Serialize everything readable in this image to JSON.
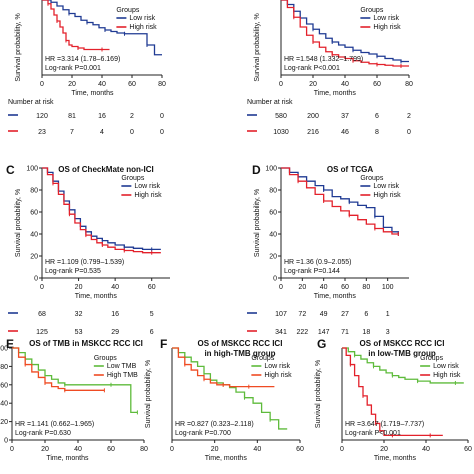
{
  "colors": {
    "blue": "#1f3a93",
    "red": "#e3212b",
    "orange": "#ef4b23",
    "green": "#5ebb3b",
    "axis": "#222222",
    "text": "#111111"
  },
  "common": {
    "x_label": "Time, months",
    "y_label": "Survival probability, %",
    "risk_title": "Number at risk",
    "legend_title": "Groups"
  },
  "chart_data": [
    {
      "id": "A",
      "type": "line",
      "letter": "",
      "title": "",
      "xlim": [
        0,
        80
      ],
      "ylim": [
        0,
        100
      ],
      "xticks": [
        0,
        20,
        40,
        60,
        80
      ],
      "yticks": [],
      "legend": [
        "Low risk",
        "High risk"
      ],
      "hr": "HR =3.314 (1.78–6.169)",
      "pval": "Log-rank P=0.001",
      "risk": [
        [
          "120",
          "81",
          "16",
          "2",
          "0"
        ],
        [
          "23",
          "7",
          "4",
          "0",
          "0"
        ]
      ],
      "series": [
        {
          "name": "Low risk",
          "color": "blue",
          "x": [
            0,
            3,
            6,
            10,
            14,
            18,
            22,
            26,
            30,
            34,
            38,
            42,
            46,
            50,
            55,
            60,
            65,
            70,
            75,
            80
          ],
          "y": [
            100,
            100,
            97,
            92,
            87,
            82,
            78,
            73,
            70,
            67,
            63,
            60,
            58,
            56,
            55,
            55,
            55,
            40,
            27,
            27
          ]
        },
        {
          "name": "High risk",
          "color": "red",
          "x": [
            0,
            2,
            4,
            6,
            8,
            10,
            12,
            14,
            16,
            18,
            20,
            24,
            28,
            35,
            40,
            45
          ],
          "y": [
            100,
            100,
            95,
            88,
            80,
            72,
            64,
            56,
            46,
            40,
            38,
            36,
            34,
            34,
            34,
            34
          ]
        }
      ]
    },
    {
      "id": "B",
      "type": "line",
      "letter": "",
      "title": "",
      "xlim": [
        0,
        80
      ],
      "ylim": [
        0,
        100
      ],
      "xticks": [
        0,
        20,
        40,
        60,
        80
      ],
      "yticks": [],
      "legend": [
        "Low risk",
        "High risk"
      ],
      "hr": "HR =1.548 (1.332–1.799)",
      "pval": "Log-rank P<0.001",
      "risk": [
        [
          "580",
          "200",
          "37",
          "6",
          "2"
        ],
        [
          "1030",
          "216",
          "46",
          "8",
          "0"
        ]
      ],
      "series": [
        {
          "name": "Low risk",
          "color": "blue",
          "x": [
            0,
            4,
            8,
            12,
            16,
            20,
            24,
            28,
            32,
            36,
            40,
            45,
            50,
            55,
            60,
            65,
            70,
            75,
            80
          ],
          "y": [
            100,
            94,
            85,
            76,
            68,
            61,
            55,
            49,
            44,
            40,
            37,
            33,
            30,
            28,
            25,
            22,
            20,
            18,
            18
          ]
        },
        {
          "name": "High risk",
          "color": "red",
          "x": [
            0,
            4,
            8,
            12,
            16,
            20,
            24,
            28,
            32,
            36,
            40,
            45,
            50,
            55,
            60,
            65,
            70,
            75,
            80
          ],
          "y": [
            100,
            90,
            77,
            64,
            53,
            44,
            37,
            31,
            27,
            24,
            22,
            19,
            17,
            15,
            14,
            13,
            12,
            12,
            12
          ]
        }
      ]
    },
    {
      "id": "C",
      "type": "line",
      "letter": "C",
      "title": "OS of CheckMate non-ICI",
      "xlim": [
        0,
        70
      ],
      "ylim": [
        0,
        100
      ],
      "xticks": [
        0,
        20,
        40,
        60
      ],
      "yticks": [
        0,
        20,
        40,
        60,
        80,
        100
      ],
      "legend": [
        "Low risk",
        "High risk"
      ],
      "hr": "HR =1.109 (0.799–1.539)",
      "pval": "Log-rank P=0.535",
      "risk": [
        [
          "68",
          "32",
          "16",
          "5"
        ],
        [
          "125",
          "53",
          "29",
          "6"
        ]
      ],
      "series": [
        {
          "name": "Low risk",
          "color": "blue",
          "x": [
            0,
            3,
            6,
            9,
            12,
            15,
            18,
            21,
            24,
            27,
            30,
            33,
            36,
            40,
            45,
            50,
            55,
            60,
            65
          ],
          "y": [
            100,
            96,
            88,
            79,
            70,
            62,
            54,
            47,
            42,
            38,
            36,
            34,
            32,
            30,
            28,
            27,
            26,
            26,
            26
          ]
        },
        {
          "name": "High risk",
          "color": "red",
          "x": [
            0,
            3,
            6,
            9,
            12,
            15,
            18,
            21,
            24,
            27,
            30,
            33,
            36,
            40,
            45,
            50,
            55,
            60,
            65
          ],
          "y": [
            100,
            94,
            86,
            76,
            67,
            58,
            50,
            44,
            39,
            35,
            32,
            30,
            28,
            26,
            25,
            24,
            23,
            23,
            23
          ]
        }
      ]
    },
    {
      "id": "D",
      "type": "line",
      "letter": "D",
      "title": "OS of TCGA",
      "xlim": [
        0,
        120
      ],
      "ylim": [
        0,
        100
      ],
      "xticks": [
        0,
        20,
        40,
        60,
        80,
        100
      ],
      "yticks": [
        0,
        20,
        40,
        60,
        80,
        100
      ],
      "legend": [
        "Low risk",
        "High risk"
      ],
      "hr": "HR =1.36 (0.9–2.055)",
      "pval": "Log-rank P=0.144",
      "risk": [
        [
          "107",
          "72",
          "49",
          "27",
          "6",
          "1"
        ],
        [
          "341",
          "222",
          "147",
          "71",
          "18",
          "3"
        ]
      ],
      "series": [
        {
          "name": "Low risk",
          "color": "blue",
          "x": [
            0,
            8,
            16,
            24,
            32,
            40,
            48,
            56,
            64,
            72,
            80,
            88,
            96,
            104,
            110
          ],
          "y": [
            100,
            96,
            92,
            88,
            84,
            80,
            74,
            72,
            69,
            66,
            64,
            56,
            46,
            42,
            40
          ]
        },
        {
          "name": "High risk",
          "color": "red",
          "x": [
            0,
            8,
            16,
            24,
            32,
            40,
            48,
            56,
            64,
            72,
            80,
            88,
            96,
            104,
            110
          ],
          "y": [
            100,
            94,
            88,
            82,
            76,
            70,
            65,
            61,
            57,
            53,
            49,
            45,
            42,
            40,
            40
          ]
        }
      ]
    },
    {
      "id": "E",
      "type": "line",
      "letter": "E",
      "title": "OS of TMB in MSKCC RCC ICI",
      "xlim": [
        0,
        80
      ],
      "ylim": [
        0,
        100
      ],
      "xticks": [
        0,
        20,
        40,
        60,
        80
      ],
      "yticks": [
        0,
        20,
        40,
        60,
        80,
        100
      ],
      "legend": [
        "Low TMB",
        "High TMB"
      ],
      "hr": "HR =1.141 (0.662–1.965)",
      "pval": "Log-rank P=0.630",
      "risk": [],
      "series": [
        {
          "name": "Low TMB",
          "color": "green",
          "x": [
            0,
            4,
            8,
            12,
            16,
            20,
            24,
            28,
            32,
            40,
            50,
            60,
            68,
            72,
            76
          ],
          "y": [
            100,
            95,
            88,
            82,
            76,
            70,
            66,
            62,
            60,
            60,
            60,
            60,
            60,
            30,
            30
          ]
        },
        {
          "name": "High TMB",
          "color": "orange",
          "x": [
            0,
            4,
            8,
            12,
            16,
            20,
            24,
            28,
            32,
            40,
            50,
            56
          ],
          "y": [
            100,
            90,
            82,
            74,
            68,
            62,
            58,
            56,
            54,
            54,
            54,
            54
          ]
        }
      ]
    },
    {
      "id": "F",
      "type": "line",
      "letter": "F",
      "title": "OS of MSKCC RCC ICI in high-TMB group",
      "xlim": [
        0,
        60
      ],
      "ylim": [
        0,
        100
      ],
      "xticks": [
        0,
        20,
        40,
        60
      ],
      "yticks": [],
      "legend": [
        "Low risk",
        "High risk"
      ],
      "hr": "HR =0.827 (0.323–2.118)",
      "pval": "Log-rank P=0.700",
      "risk": [],
      "series": [
        {
          "name": "Low risk",
          "color": "green",
          "x": [
            0,
            3,
            6,
            9,
            12,
            15,
            18,
            21,
            24,
            27,
            30,
            34,
            38,
            42,
            46,
            50,
            54
          ],
          "y": [
            100,
            95,
            90,
            85,
            80,
            72,
            65,
            62,
            60,
            57,
            52,
            46,
            40,
            30,
            22,
            12,
            12
          ]
        },
        {
          "name": "High risk",
          "color": "orange",
          "x": [
            0,
            3,
            6,
            9,
            12,
            15,
            18,
            21,
            24,
            27,
            30,
            36,
            42,
            48
          ],
          "y": [
            100,
            90,
            82,
            76,
            70,
            66,
            62,
            60,
            60,
            58,
            58,
            58,
            58,
            58
          ]
        }
      ]
    },
    {
      "id": "G",
      "type": "line",
      "letter": "G",
      "title": "OS of MSKCC RCC ICI in low-TMB group",
      "xlim": [
        0,
        60
      ],
      "ylim": [
        0,
        100
      ],
      "xticks": [
        0,
        20,
        40,
        60
      ],
      "yticks": [],
      "legend": [
        "Low risk",
        "High risk"
      ],
      "hr": "HR =3.647 (1.719–7.737)",
      "pval": "Log-rank P<0.001",
      "risk": [],
      "series": [
        {
          "name": "Low risk",
          "color": "green",
          "x": [
            0,
            3,
            6,
            9,
            12,
            15,
            18,
            21,
            24,
            27,
            30,
            36,
            42,
            48,
            54,
            58
          ],
          "y": [
            100,
            96,
            92,
            88,
            84,
            80,
            76,
            73,
            70,
            68,
            66,
            64,
            62,
            62,
            62,
            62
          ]
        },
        {
          "name": "High risk",
          "color": "red",
          "x": [
            0,
            2,
            4,
            6,
            8,
            10,
            12,
            14,
            16,
            18,
            20,
            24,
            30,
            36,
            42,
            48
          ],
          "y": [
            100,
            92,
            82,
            70,
            58,
            48,
            38,
            28,
            18,
            10,
            5,
            5,
            5,
            5,
            5,
            5
          ]
        }
      ]
    }
  ]
}
